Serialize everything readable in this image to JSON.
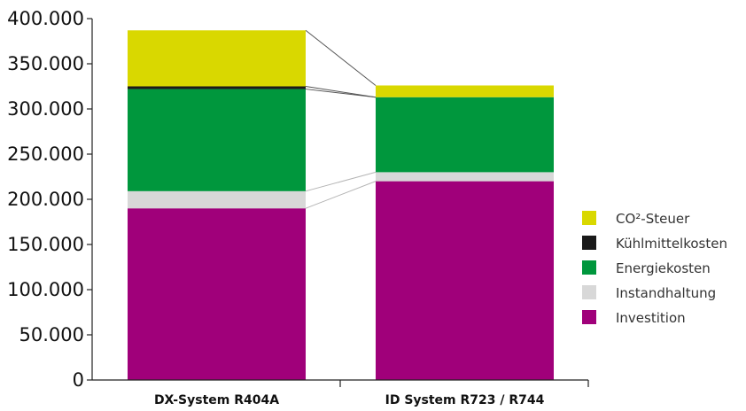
{
  "chart_data": {
    "type": "bar",
    "stacked": true,
    "categories": [
      "DX-System R404A",
      "ID System R723 / R744"
    ],
    "series": [
      {
        "name": "Investition",
        "color": "#a0007a",
        "values": [
          190000,
          220000
        ]
      },
      {
        "name": "Instandhaltung",
        "color": "#d8d8d8",
        "values": [
          19000,
          10000
        ]
      },
      {
        "name": "Energiekosten",
        "color": "#00973d",
        "values": [
          113000,
          83000
        ]
      },
      {
        "name": "Kühlmittelkosten",
        "color": "#1a1a1a",
        "values": [
          3000,
          0
        ]
      },
      {
        "name": "CO²-Steuer",
        "color": "#d9d800",
        "values": [
          62000,
          13000
        ]
      }
    ],
    "legend_order": [
      "CO²-Steuer",
      "Kühlmittelkosten",
      "Energiekosten",
      "Instandhaltung",
      "Investition"
    ],
    "legend_position": "right",
    "ylim": [
      0,
      400000
    ],
    "yticks": [
      0,
      50000,
      100000,
      150000,
      200000,
      250000,
      300000,
      350000,
      400000
    ],
    "ytick_labels": [
      "0",
      "50.000",
      "100.000",
      "150.000",
      "200.000",
      "250.000",
      "300.000",
      "350.000",
      "400.000"
    ],
    "title": "",
    "xlabel": "",
    "ylabel": "",
    "grid": false,
    "connector_lines": true
  }
}
